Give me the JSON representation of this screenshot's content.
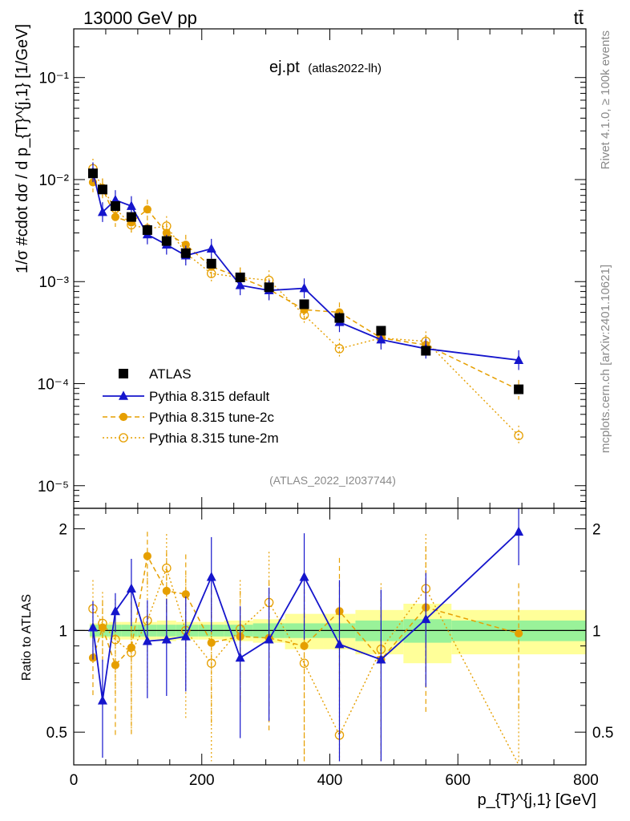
{
  "chart_data": {
    "type": "scatter",
    "header_left": "13000 GeV pp",
    "header_right": "tt̄",
    "title": "ej.pt",
    "title_suffix": "(atlas2022-lh)",
    "analysis_id": "(ATLAS_2022_I2037744)",
    "side_label_top": "Rivet 4.1.0, ≥ 100k events",
    "side_label_bottom": "mcplots.cern.ch [arXiv:2401.10621]",
    "ylabel": "1/σ #cdot dσ / d p_{T}^{j,1} [1/GeV]",
    "ratio_ylabel": "Ratio to ATLAS",
    "xlabel": "p_{T}^{j,1} [GeV]",
    "xlim": [
      0,
      800
    ],
    "ylim": [
      6e-06,
      0.3
    ],
    "ratio_ylim": [
      0.4,
      2.3
    ],
    "x_ticks": [
      "0",
      "200",
      "400",
      "600",
      "800"
    ],
    "y_ticks": [
      "10⁻⁵",
      "10⁻⁴",
      "10⁻³",
      "10⁻²",
      "10⁻¹"
    ],
    "ratio_ticks": [
      "0.5",
      "1",
      "2"
    ],
    "legend": [
      "ATLAS",
      "Pythia 8.315 default",
      "Pythia 8.315 tune-2c",
      "Pythia 8.315 tune-2m"
    ],
    "x": [
      30,
      45,
      65,
      90,
      115,
      145,
      175,
      215,
      260,
      305,
      360,
      415,
      480,
      550,
      695
    ],
    "bin_edges": [
      25,
      37,
      55,
      75,
      100,
      130,
      160,
      195,
      235,
      280,
      330,
      390,
      440,
      515,
      590,
      800
    ],
    "uncertainty_band_inner": [
      0.04,
      0.04,
      0.04,
      0.04,
      0.04,
      0.04,
      0.04,
      0.04,
      0.04,
      0.05,
      0.05,
      0.05,
      0.07,
      0.08,
      0.07
    ],
    "uncertainty_band_outer": [
      0.05,
      0.05,
      0.06,
      0.06,
      0.06,
      0.07,
      0.06,
      0.06,
      0.07,
      0.08,
      0.12,
      0.12,
      0.15,
      0.2,
      0.15
    ],
    "series": [
      {
        "name": "ATLAS",
        "color": "#000000",
        "marker": "square",
        "values": [
          0.0115,
          0.008,
          0.0055,
          0.0043,
          0.0032,
          0.0025,
          0.0019,
          0.0015,
          0.0011,
          0.00088,
          0.0006,
          0.00044,
          0.00033,
          0.00021,
          8.8e-05
        ]
      },
      {
        "name": "Pythia 8.315 default",
        "color": "#1515cc",
        "marker": "triangle",
        "values": [
          0.0118,
          0.0048,
          0.0063,
          0.0055,
          0.0029,
          0.0023,
          0.0018,
          0.0021,
          0.00092,
          0.00082,
          0.00086,
          0.0004,
          0.00027,
          0.00022,
          0.00017
        ],
        "ratio": [
          1.02,
          0.62,
          1.14,
          1.33,
          0.93,
          0.94,
          0.96,
          1.44,
          0.83,
          0.94,
          1.44,
          0.91,
          0.82,
          1.08,
          1.96
        ],
        "ratio_err": [
          0.2,
          0.2,
          0.15,
          0.3,
          0.3,
          0.3,
          0.3,
          0.45,
          0.35,
          0.4,
          0.5,
          0.5,
          0.5,
          0.4,
          0.4
        ]
      },
      {
        "name": "Pythia 8.315 tune-2c",
        "color": "#e69f00",
        "marker": "circle",
        "values": [
          0.0094,
          0.0082,
          0.0043,
          0.0038,
          0.0051,
          0.003,
          0.0023,
          0.0014,
          0.0011,
          0.00084,
          0.00053,
          0.0005,
          0.00028,
          0.00024,
          8.7e-05
        ],
        "ratio": [
          0.83,
          1.02,
          0.79,
          0.89,
          1.66,
          1.31,
          1.28,
          0.92,
          0.96,
          0.95,
          0.9,
          1.14,
          0.82,
          1.17,
          0.98
        ],
        "ratio_err": [
          0.2,
          0.2,
          0.3,
          0.4,
          0.3,
          0.4,
          0.4,
          0.4,
          0.35,
          0.45,
          0.5,
          0.5,
          0.5,
          0.6,
          0.4
        ]
      },
      {
        "name": "Pythia 8.315 tune-2m",
        "color": "#e69f00",
        "marker": "open-circle",
        "values": [
          0.0128,
          0.0082,
          0.0052,
          0.0036,
          0.0033,
          0.0035,
          0.0019,
          0.0012,
          0.0011,
          0.00103,
          0.00047,
          0.00022,
          0.00028,
          0.00026,
          3.1e-05
        ],
        "ratio": [
          1.16,
          1.05,
          0.94,
          0.86,
          1.07,
          1.53,
          1.0,
          0.8,
          1.01,
          1.21,
          0.8,
          0.49,
          0.88,
          1.33,
          0.36
        ],
        "ratio_err": [
          0.25,
          0.25,
          0.3,
          0.35,
          0.4,
          0.4,
          0.45,
          0.4,
          0.4,
          0.5,
          0.5,
          0.4,
          0.5,
          0.6,
          0.3
        ]
      }
    ]
  }
}
